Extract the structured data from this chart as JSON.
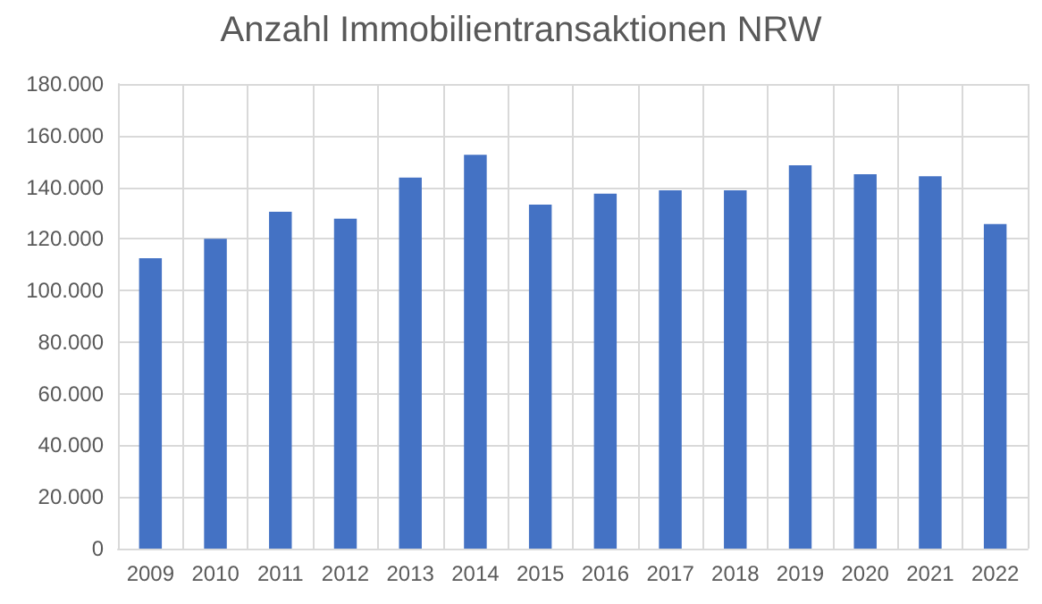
{
  "chart_data": {
    "type": "bar",
    "title": "Anzahl Immobilientransaktionen NRW",
    "categories": [
      "2009",
      "2010",
      "2011",
      "2012",
      "2013",
      "2014",
      "2015",
      "2016",
      "2017",
      "2018",
      "2019",
      "2020",
      "2021",
      "2022"
    ],
    "values": [
      112500,
      120000,
      130500,
      127800,
      143700,
      152600,
      133300,
      137500,
      138800,
      138800,
      148500,
      145000,
      144300,
      125700
    ],
    "color": "#4472c4",
    "ylim": [
      0,
      180000
    ],
    "yticks": [
      {
        "value": 0,
        "label": "0"
      },
      {
        "value": 20000,
        "label": "20.000"
      },
      {
        "value": 40000,
        "label": "40.000"
      },
      {
        "value": 60000,
        "label": "60.000"
      },
      {
        "value": 80000,
        "label": "80.000"
      },
      {
        "value": 100000,
        "label": "100.000"
      },
      {
        "value": 120000,
        "label": "120.000"
      },
      {
        "value": 140000,
        "label": "140.000"
      },
      {
        "value": 160000,
        "label": "160.000"
      },
      {
        "value": 180000,
        "label": "180.000"
      }
    ],
    "grid": true
  }
}
